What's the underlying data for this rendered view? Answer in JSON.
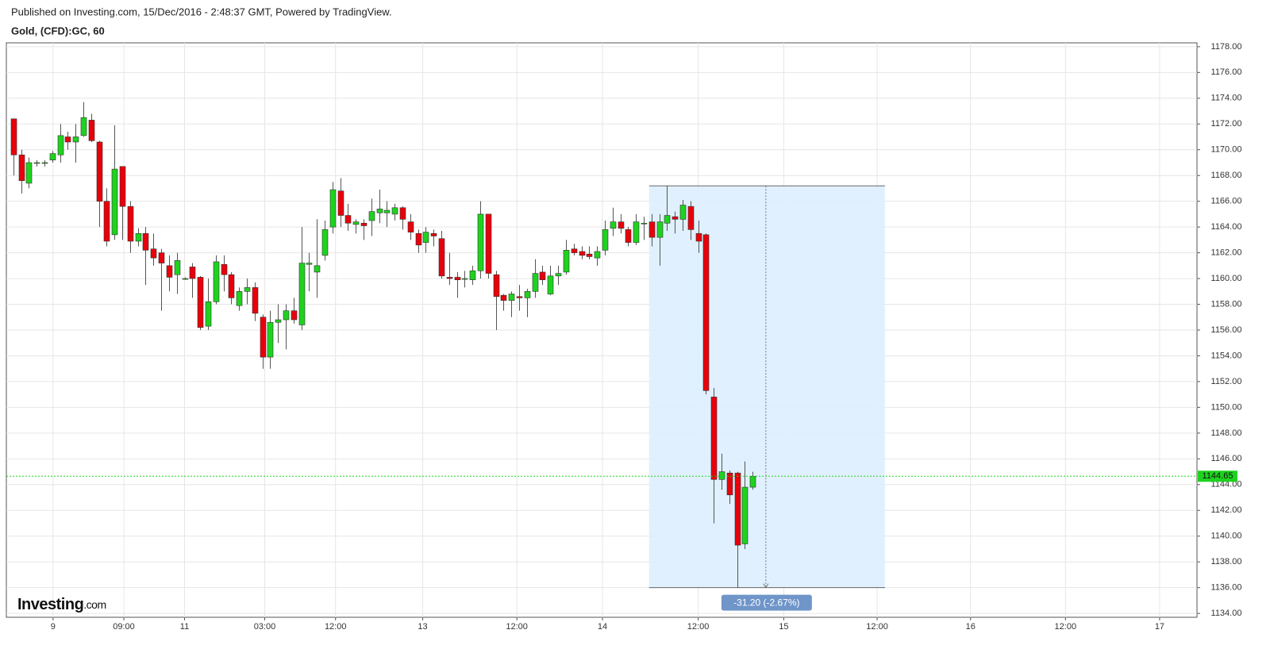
{
  "chart_data": {
    "type": "candlestick",
    "subtitle": "Published on Investing.com, 15/Dec/2016 - 2:48:37 GMT, Powered by TradingView.",
    "title": "Gold, (CFD):GC, 60",
    "logo": [
      "Investing",
      ".com"
    ],
    "up_color": "#1ed31e",
    "down_color": "#e8000b",
    "open": [
      1172.4,
      1169.6,
      1167.4,
      1169,
      1169,
      1169.2,
      1169.6,
      1171,
      1170.6,
      1171.1,
      1172.3,
      1170.6,
      1166,
      1163.4,
      1168.7,
      1165.6,
      1162.9,
      1163.5,
      1162.3,
      1162,
      1161,
      1160.3,
      1160,
      1160.9,
      1160.1,
      1156.3,
      1158.2,
      1161.1,
      1160.3,
      1157.9,
      1159,
      1159.3,
      1157,
      1153.9,
      1156.6,
      1156.8,
      1157.5,
      1156.4,
      1161.1,
      1160.5,
      1161.8,
      1164,
      1166.8,
      1164.9,
      1164.2,
      1164.3,
      1164.5,
      1165.1,
      1165.1,
      1165,
      1165.5,
      1164.4,
      1163.5,
      1162.8,
      1163.5,
      1163.1,
      1160.1,
      1160.1,
      1160,
      1159.9,
      1160.6,
      1165,
      1160.3,
      1158.7,
      1158.3,
      1158.6,
      1158.5,
      1159,
      1160.5,
      1158.8,
      1160.2,
      1160.5,
      1162.3,
      1162.1,
      1161.9,
      1161.6,
      1162.2,
      1163.9,
      1164.4,
      1163.8,
      1162.8,
      1164.3,
      1164.4,
      1163.2,
      1164.3,
      1164.8,
      1164.6,
      1165.6,
      1163.5,
      1163.4,
      1150.8,
      1144.4,
      1144.9,
      1144.9,
      1139.4,
      1143.8
    ],
    "high": [
      1172.4,
      1170,
      1169.4,
      1169.2,
      1169.2,
      1169.9,
      1172,
      1171.4,
      1172,
      1173.7,
      1172.8,
      1170.7,
      1167,
      1171.9,
      1168.7,
      1166,
      1163.9,
      1164,
      1163.5,
      1162.3,
      1161.8,
      1162,
      1160.1,
      1161.2,
      1160.2,
      1160,
      1161.8,
      1161.8,
      1160.5,
      1159.3,
      1160,
      1159.7,
      1157.2,
      1157.5,
      1158,
      1158,
      1158.5,
      1164,
      1162,
      1164.6,
      1164.5,
      1167.5,
      1167.8,
      1165.8,
      1164.6,
      1164.6,
      1166.2,
      1166.9,
      1166,
      1165.8,
      1165.6,
      1165,
      1163.8,
      1164,
      1163.8,
      1163.7,
      1162,
      1160.5,
      1160.6,
      1161,
      1166,
      1165,
      1160.6,
      1158.8,
      1159,
      1159.5,
      1159.2,
      1161.5,
      1161,
      1161,
      1161,
      1163,
      1162.7,
      1162.5,
      1162.5,
      1162.5,
      1164.5,
      1165.5,
      1165,
      1164,
      1165,
      1164.8,
      1165,
      1165,
      1167.2,
      1165.2,
      1166.1,
      1166,
      1164.5,
      1163.5,
      1151.5,
      1146.4,
      1145.1,
      1145,
      1145.8,
      1145
    ],
    "low": [
      1168,
      1166.6,
      1167,
      1168.7,
      1168.7,
      1169,
      1169,
      1170,
      1169,
      1171,
      1170.6,
      1164,
      1162.5,
      1163,
      1163,
      1162,
      1162.5,
      1159.5,
      1161,
      1157.5,
      1159,
      1158.8,
      1159.9,
      1158.5,
      1156,
      1156,
      1158,
      1159,
      1158,
      1157.5,
      1158,
      1156.7,
      1153,
      1153,
      1155,
      1154.5,
      1156.5,
      1156,
      1159,
      1158.5,
      1161.4,
      1163.5,
      1164,
      1163.7,
      1163.5,
      1163,
      1163.3,
      1164.3,
      1164,
      1164.5,
      1163.8,
      1163,
      1162,
      1162,
      1162.5,
      1160,
      1159.5,
      1158.5,
      1159.3,
      1159.5,
      1160,
      1160,
      1156,
      1157.5,
      1157,
      1157.5,
      1157,
      1158.5,
      1159.5,
      1158.7,
      1159.5,
      1160.3,
      1161.8,
      1161.5,
      1161.5,
      1161,
      1161.8,
      1163.3,
      1163.5,
      1162.5,
      1162.6,
      1163,
      1162.5,
      1161,
      1163.7,
      1163.5,
      1163.7,
      1163,
      1162,
      1151,
      1141,
      1143.6,
      1142.5,
      1136,
      1139,
      1143.6
    ],
    "close": [
      1169.6,
      1167.6,
      1169,
      1169,
      1169,
      1169.7,
      1171.1,
      1170.6,
      1171,
      1172.5,
      1170.7,
      1166,
      1162.9,
      1168.5,
      1165.6,
      1162.9,
      1163.5,
      1162.2,
      1161.6,
      1161.2,
      1160.1,
      1161.4,
      1160,
      1160,
      1156.2,
      1158.2,
      1161.3,
      1160.3,
      1158.5,
      1159,
      1159.3,
      1157.3,
      1153.9,
      1156.6,
      1156.8,
      1157.5,
      1156.8,
      1161.2,
      1161.2,
      1161,
      1163.8,
      1166.9,
      1164.9,
      1164.3,
      1164.4,
      1164.1,
      1165.2,
      1165.4,
      1165.3,
      1165.5,
      1164.6,
      1163.6,
      1162.6,
      1163.6,
      1163.3,
      1160.2,
      1160,
      1159.9,
      1160,
      1160.6,
      1165,
      1160.4,
      1158.6,
      1158.3,
      1158.8,
      1158.5,
      1159,
      1160.4,
      1159.9,
      1160.2,
      1160.4,
      1162.2,
      1162,
      1161.8,
      1161.7,
      1162.1,
      1163.8,
      1164.4,
      1163.9,
      1162.8,
      1164.4,
      1164.3,
      1163.2,
      1164.4,
      1164.9,
      1164.6,
      1165.7,
      1163.8,
      1162.9,
      1151.3,
      1144.4,
      1145,
      1143.2,
      1139.3,
      1143.8,
      1144.65
    ],
    "xlim": [
      -0.9,
      152.1
    ],
    "xticks": [
      {
        "value": 5.1,
        "label": "9"
      },
      {
        "value": 14.2,
        "label": "09:00"
      },
      {
        "value": 22,
        "label": "11"
      },
      {
        "value": 32.3,
        "label": "03:00"
      },
      {
        "value": 41.4,
        "label": "12:00"
      },
      {
        "value": 52.6,
        "label": "13"
      },
      {
        "value": 64.7,
        "label": "12:00"
      },
      {
        "value": 75.7,
        "label": "14"
      },
      {
        "value": 88,
        "label": "12:00"
      },
      {
        "value": 99,
        "label": "15"
      },
      {
        "value": 111,
        "label": "12:00"
      },
      {
        "value": 123,
        "label": "16"
      },
      {
        "value": 135.2,
        "label": "12:00"
      },
      {
        "value": 147.3,
        "label": "17"
      }
    ],
    "ylim": [
      1133.7,
      1178.3
    ],
    "yticks": [
      {
        "value": 1134,
        "label": "1134.00"
      },
      {
        "value": 1136,
        "label": "1136.00"
      },
      {
        "value": 1138,
        "label": "1138.00"
      },
      {
        "value": 1140,
        "label": "1140.00"
      },
      {
        "value": 1142,
        "label": "1142.00"
      },
      {
        "value": 1144,
        "label": "1144.00"
      },
      {
        "value": 1146,
        "label": "1146.00"
      },
      {
        "value": 1148,
        "label": "1148.00"
      },
      {
        "value": 1150,
        "label": "1150.00"
      },
      {
        "value": 1152,
        "label": "1152.00"
      },
      {
        "value": 1154,
        "label": "1154.00"
      },
      {
        "value": 1156,
        "label": "1156.00"
      },
      {
        "value": 1158,
        "label": "1158.00"
      },
      {
        "value": 1160,
        "label": "1160.00"
      },
      {
        "value": 1162,
        "label": "1162.00"
      },
      {
        "value": 1164,
        "label": "1164.00"
      },
      {
        "value": 1166,
        "label": "1166.00"
      },
      {
        "value": 1168,
        "label": "1168.00"
      },
      {
        "value": 1170,
        "label": "1170.00"
      },
      {
        "value": 1172,
        "label": "1172.00"
      },
      {
        "value": 1174,
        "label": "1174.00"
      },
      {
        "value": 1176,
        "label": "1176.00"
      },
      {
        "value": 1178,
        "label": "1178.00"
      }
    ],
    "grid": true,
    "last_price": {
      "value": 1144.65,
      "label": "1144.65",
      "color": "#1ed31e"
    },
    "measure": {
      "x_start": 81.7,
      "x_end": 112,
      "x_arrow": 96.7,
      "high": 1167.2,
      "low": 1136,
      "label": "-31.20 (-2.67%)"
    }
  }
}
